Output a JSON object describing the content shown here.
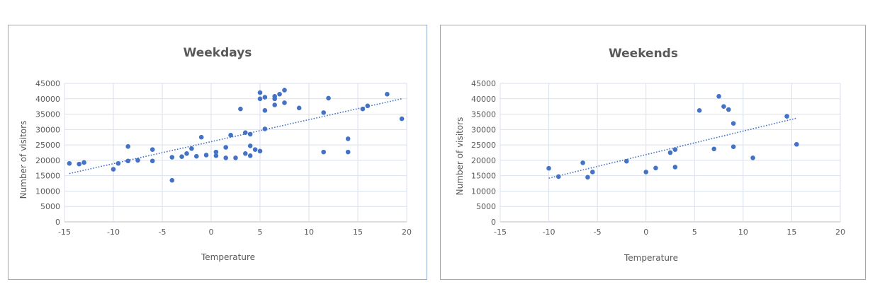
{
  "chart_data": [
    {
      "type": "scatter",
      "title": "Weekdays",
      "xlabel": "Temperature",
      "ylabel": "Number of visitors",
      "xlim": [
        -15,
        20
      ],
      "ylim": [
        0,
        45000
      ],
      "xticks": [
        "-15",
        "-10",
        "-5",
        "0",
        "5",
        "10",
        "15",
        "20"
      ],
      "yticks": [
        "0",
        "5000",
        "10000",
        "15000",
        "20000",
        "25000",
        "30000",
        "35000",
        "40000",
        "45000"
      ],
      "grid": true,
      "marker_color": "#4472c4",
      "trendline": {
        "x": [
          -14.5,
          19.5
        ],
        "y": [
          15700,
          40000
        ]
      },
      "points": [
        [
          -14.5,
          19000
        ],
        [
          -13.5,
          18800
        ],
        [
          -13,
          19300
        ],
        [
          -10,
          17100
        ],
        [
          -9.5,
          19000
        ],
        [
          -8.5,
          24500
        ],
        [
          -8.5,
          19800
        ],
        [
          -7.5,
          20000
        ],
        [
          -6,
          23500
        ],
        [
          -6,
          19800
        ],
        [
          -4,
          21000
        ],
        [
          -4,
          13500
        ],
        [
          -3,
          21200
        ],
        [
          -2.5,
          22200
        ],
        [
          -2,
          23800
        ],
        [
          -1.5,
          21300
        ],
        [
          -1,
          27500
        ],
        [
          -0.5,
          21700
        ],
        [
          0.5,
          22700
        ],
        [
          0.5,
          21500
        ],
        [
          1.5,
          24200
        ],
        [
          1.5,
          20800
        ],
        [
          2,
          28200
        ],
        [
          2.5,
          20800
        ],
        [
          3,
          36700
        ],
        [
          3.5,
          29000
        ],
        [
          3.5,
          22200
        ],
        [
          4,
          28500
        ],
        [
          4,
          24700
        ],
        [
          4,
          21500
        ],
        [
          4.5,
          23500
        ],
        [
          5,
          42000
        ],
        [
          5,
          40000
        ],
        [
          5,
          23000
        ],
        [
          5.5,
          40500
        ],
        [
          5.5,
          36200
        ],
        [
          5.5,
          30200
        ],
        [
          6.5,
          40800
        ],
        [
          6.5,
          40000
        ],
        [
          6.5,
          38000
        ],
        [
          7,
          41500
        ],
        [
          7.5,
          42800
        ],
        [
          7.5,
          38700
        ],
        [
          9,
          37000
        ],
        [
          11.5,
          35500
        ],
        [
          11.5,
          22700
        ],
        [
          12,
          40200
        ],
        [
          14,
          27000
        ],
        [
          14,
          22700
        ],
        [
          15.5,
          36700
        ],
        [
          16,
          37700
        ],
        [
          18,
          41500
        ],
        [
          19.5,
          33500
        ]
      ]
    },
    {
      "type": "scatter",
      "title": "Weekends",
      "xlabel": "Temperature",
      "ylabel": "Number of visitors",
      "xlim": [
        -15,
        20
      ],
      "ylim": [
        0,
        45000
      ],
      "xticks": [
        "-15",
        "-10",
        "-5",
        "0",
        "5",
        "10",
        "15",
        "20"
      ],
      "yticks": [
        "0",
        "5000",
        "10000",
        "15000",
        "20000",
        "25000",
        "30000",
        "35000",
        "40000",
        "45000"
      ],
      "grid": true,
      "marker_color": "#4472c4",
      "trendline": {
        "x": [
          -10,
          15.5
        ],
        "y": [
          14200,
          33700
        ]
      },
      "points": [
        [
          -10,
          17400
        ],
        [
          -9,
          14700
        ],
        [
          -6.5,
          19200
        ],
        [
          -6,
          14500
        ],
        [
          -5.5,
          16200
        ],
        [
          -2,
          19700
        ],
        [
          0,
          16200
        ],
        [
          1,
          17500
        ],
        [
          2.5,
          22500
        ],
        [
          3,
          23500
        ],
        [
          3,
          17800
        ],
        [
          5.5,
          36200
        ],
        [
          7,
          23700
        ],
        [
          7.5,
          40800
        ],
        [
          8,
          37500
        ],
        [
          8.5,
          36500
        ],
        [
          9,
          32000
        ],
        [
          9,
          24400
        ],
        [
          11,
          20800
        ],
        [
          14.5,
          34300
        ],
        [
          15.5,
          25200
        ]
      ]
    }
  ]
}
